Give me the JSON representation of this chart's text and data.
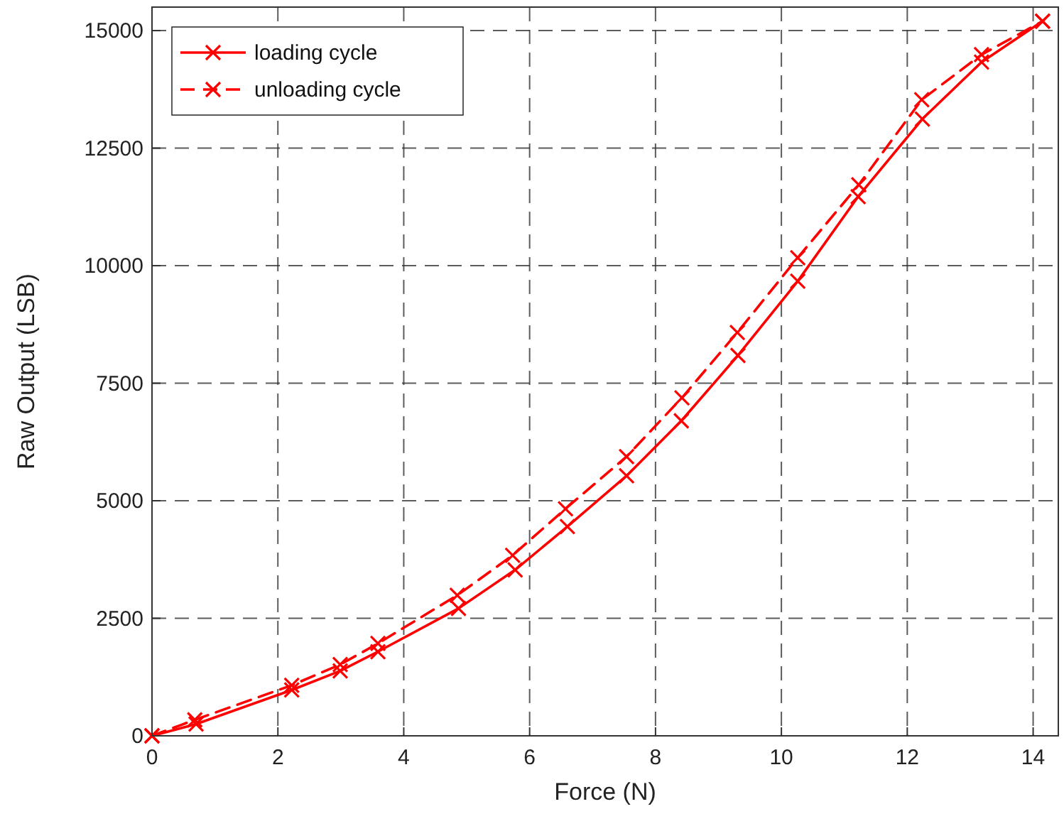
{
  "chart_data": {
    "type": "line",
    "xlabel": "Force (N)",
    "ylabel": "Raw Output (LSB)",
    "xlim": [
      0,
      14.4
    ],
    "ylim": [
      0,
      15500
    ],
    "xticks": [
      0,
      2,
      4,
      6,
      8,
      10,
      12,
      14
    ],
    "yticks": [
      0,
      2500,
      5000,
      7500,
      10000,
      12500,
      15000
    ],
    "grid": true,
    "legend": "top left",
    "marker": "cross",
    "series": [
      {
        "name": "loading cycle",
        "color": "#ff0000",
        "line_style": "solid",
        "x": [
          0,
          0.7,
          2.22,
          2.99,
          3.59,
          4.87,
          5.77,
          6.6,
          7.54,
          8.41,
          9.31,
          10.26,
          11.22,
          12.24,
          13.18,
          14.15
        ],
        "values": [
          0,
          250,
          975,
          1380,
          1790,
          2710,
          3530,
          4450,
          5530,
          6700,
          8090,
          9670,
          11470,
          13120,
          14330,
          15200
        ]
      },
      {
        "name": "unloading cycle",
        "color": "#ff0000",
        "line_style": "dashed",
        "x": [
          0,
          0.68,
          2.22,
          2.99,
          3.59,
          4.85,
          5.73,
          6.57,
          7.54,
          8.42,
          9.3,
          10.26,
          11.23,
          12.23,
          13.18,
          14.15
        ],
        "values": [
          0,
          340,
          1075,
          1515,
          1965,
          2990,
          3840,
          4830,
          5940,
          7190,
          8580,
          10170,
          11720,
          13530,
          14490,
          15200
        ]
      }
    ]
  }
}
